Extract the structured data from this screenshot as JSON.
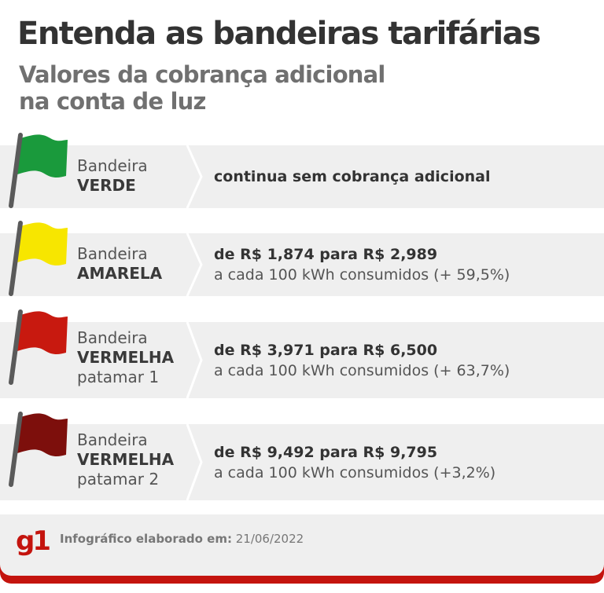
{
  "header": {
    "title": "Entenda as bandeiras tarifárias",
    "subtitle_line1": "Valores da cobrança adicional",
    "subtitle_line2": "na conta de luz"
  },
  "flags": [
    {
      "prefix": "Bandeira",
      "name": "VERDE",
      "tier": "",
      "color": "#1a9a3c",
      "main": "continua sem cobrança adicional",
      "detail": ""
    },
    {
      "prefix": "Bandeira",
      "name": "AMARELA",
      "tier": "",
      "color": "#f7e600",
      "main": "de R$ 1,874 para R$ 2,989",
      "detail": "a cada 100 kWh consumidos (+ 59,5%)"
    },
    {
      "prefix": "Bandeira",
      "name": "VERMELHA",
      "tier": "patamar 1",
      "color": "#c8190f",
      "main": "de R$ 3,971 para R$ 6,500",
      "detail": "a cada 100 kWh consumidos (+ 63,7%)"
    },
    {
      "prefix": "Bandeira",
      "name": "VERMELHA",
      "tier": "patamar 2",
      "color": "#7d0f0c",
      "main": "de R$ 9,492 para R$ 9,795",
      "detail": "a cada 100 kWh consumidos (+3,2%)"
    }
  ],
  "footer": {
    "logo": "g1",
    "credit_label": "Infográfico elaborado em:",
    "credit_date": "21/06/2022",
    "accent": "#c4140e"
  }
}
